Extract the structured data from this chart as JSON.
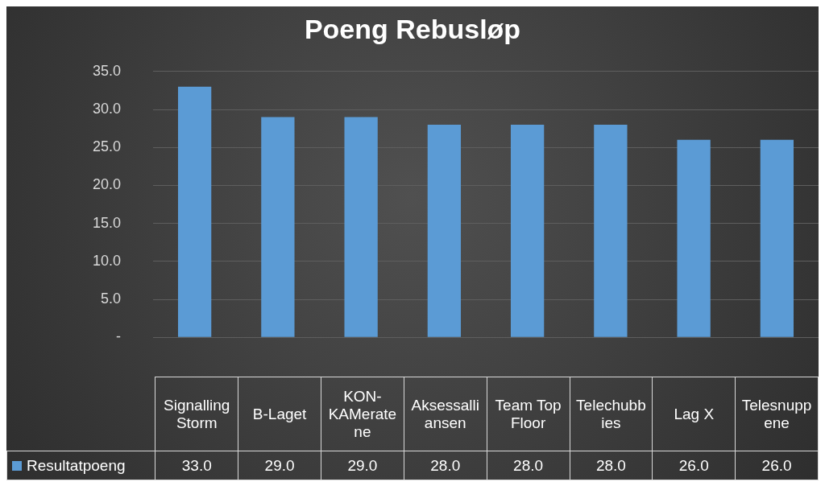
{
  "chart_data": {
    "type": "bar",
    "title": "Poeng Rebusløp",
    "categories": [
      "Signalling Storm",
      "B-Laget",
      "KON-KAMeratene",
      "Aksessalliansen",
      "Team Top Floor",
      "Telechubbies",
      "Lag X",
      "Telesnuppene"
    ],
    "series": [
      {
        "name": "Resultatpoeng",
        "color": "#5b9bd5",
        "values": [
          33,
          29,
          29,
          28,
          28,
          28,
          26,
          26
        ],
        "value_labels": [
          "33.0",
          "29.0",
          "29.0",
          "28.0",
          "28.0",
          "28.0",
          "26.0",
          "26.0"
        ]
      }
    ],
    "ylim": [
      0,
      35
    ],
    "yticks": [
      {
        "value": 0,
        "label": "-"
      },
      {
        "value": 5,
        "label": "5.0"
      },
      {
        "value": 10,
        "label": "10.0"
      },
      {
        "value": 15,
        "label": "15.0"
      },
      {
        "value": 20,
        "label": "20.0"
      },
      {
        "value": 25,
        "label": "25.0"
      },
      {
        "value": 30,
        "label": "30.0"
      },
      {
        "value": 35,
        "label": "35.0"
      }
    ],
    "grid": "y",
    "legend": "bottom"
  }
}
